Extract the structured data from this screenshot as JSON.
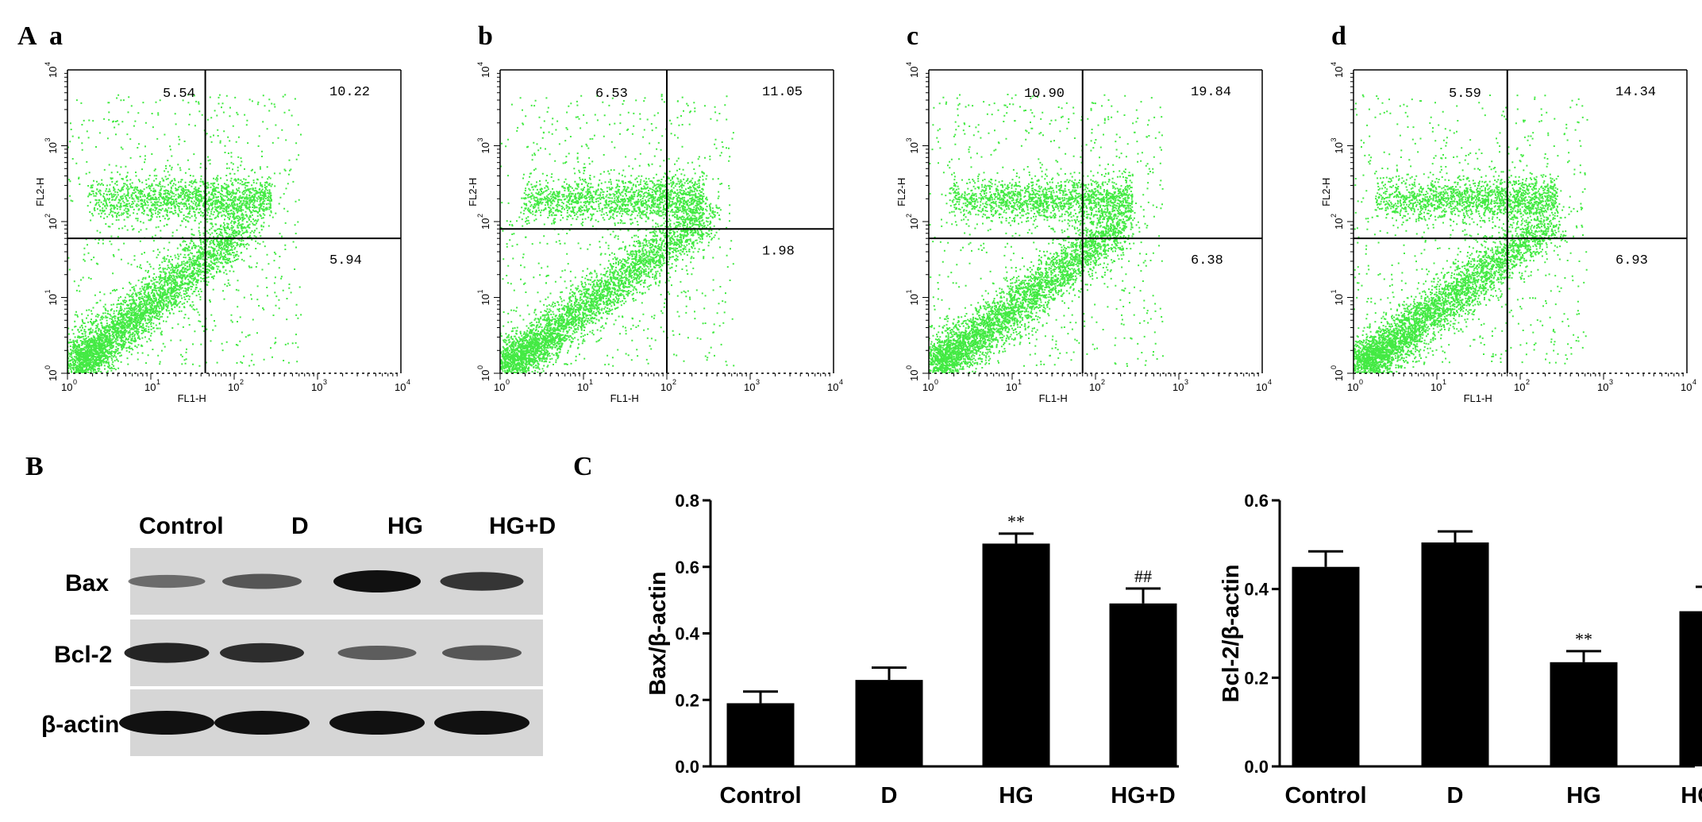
{
  "panels": {
    "A": "A",
    "B": "B",
    "C": "C"
  },
  "flow_cytometry": [
    {
      "sublabel": "a",
      "quadrants": {
        "ul": "5.54",
        "ur": "10.22",
        "lr": "5.94"
      },
      "gate": {
        "x": 45,
        "y": 60
      },
      "xlabel": "FL1-H",
      "ylabel": "FL2-H"
    },
    {
      "sublabel": "b",
      "quadrants": {
        "ul": "6.53",
        "ur": "11.05",
        "lr": "1.98"
      },
      "gate": {
        "x": 100,
        "y": 80
      },
      "xlabel": "FL1-H",
      "ylabel": "FL2-H"
    },
    {
      "sublabel": "c",
      "quadrants": {
        "ul": "10.90",
        "ur": "19.84",
        "lr": "6.38"
      },
      "gate": {
        "x": 70,
        "y": 60
      },
      "xlabel": "FL1-H",
      "ylabel": "FL2-H"
    },
    {
      "sublabel": "d",
      "quadrants": {
        "ul": "5.59",
        "ur": "14.34",
        "lr": "6.93"
      },
      "gate": {
        "x": 70,
        "y": 60
      },
      "xlabel": "FL1-H",
      "ylabel": "FL2-H"
    }
  ],
  "flow_ticks": {
    "x": [
      "10",
      "10",
      "10",
      "10",
      "10"
    ],
    "x_exp": [
      "0",
      "1",
      "2",
      "3",
      "4"
    ],
    "y": [
      "10",
      "10",
      "10",
      "10",
      "10"
    ],
    "y_exp": [
      "0",
      "1",
      "2",
      "3",
      "4"
    ]
  },
  "western_blot": {
    "lanes": [
      "Control",
      "D",
      "HG",
      "HG+D"
    ],
    "rows": [
      "Bax",
      "Bcl-2",
      "β-actin"
    ],
    "intensity": {
      "Bax": [
        0.35,
        0.5,
        1.0,
        0.75
      ],
      "Bcl-2": [
        0.85,
        0.8,
        0.45,
        0.5
      ],
      "β-actin": [
        1.0,
        1.0,
        1.0,
        1.0
      ]
    }
  },
  "chart_data": [
    {
      "type": "bar",
      "categories": [
        "Control",
        "D",
        "HG",
        "HG+D"
      ],
      "values": [
        0.19,
        0.26,
        0.67,
        0.49
      ],
      "errors": [
        0.035,
        0.037,
        0.03,
        0.045
      ],
      "annotations": [
        "",
        "",
        "**",
        "##"
      ],
      "title": "",
      "xlabel": "",
      "ylabel": "Bax/β-actin",
      "ylim": [
        0,
        0.8
      ],
      "yticks": [
        "0.0",
        "0.2",
        "0.4",
        "0.6",
        "0.8"
      ],
      "ytick_values": [
        0,
        0.2,
        0.4,
        0.6,
        0.8
      ]
    },
    {
      "type": "bar",
      "categories": [
        "Control",
        "D",
        "HG",
        "HG+D"
      ],
      "values": [
        0.45,
        0.505,
        0.235,
        0.35
      ],
      "errors": [
        0.035,
        0.025,
        0.025,
        0.055
      ],
      "annotations": [
        "",
        "",
        "**",
        "#"
      ],
      "title": "",
      "xlabel": "",
      "ylabel": "Bcl-2/β-actin",
      "ylim": [
        0,
        0.6
      ],
      "yticks": [
        "0.0",
        "0.2",
        "0.4",
        "0.6"
      ],
      "ytick_values": [
        0,
        0.2,
        0.4,
        0.6
      ]
    }
  ],
  "colors": {
    "dots": "#22e622",
    "bars": "#000000",
    "blot_bg": "#d6d6d6",
    "band": "#111111"
  }
}
